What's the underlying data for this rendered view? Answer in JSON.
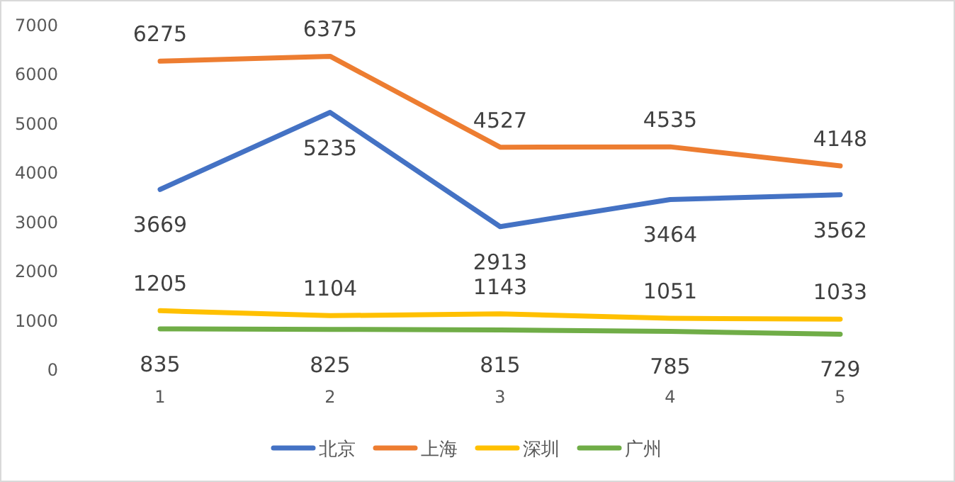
{
  "chart_data": {
    "type": "line",
    "categories": [
      "1",
      "2",
      "3",
      "4",
      "5"
    ],
    "series": [
      {
        "name": "北京",
        "color": "#4472c4",
        "values": [
          3669,
          5235,
          2913,
          3464,
          3562
        ]
      },
      {
        "name": "上海",
        "color": "#ed7d31",
        "values": [
          6275,
          6375,
          4527,
          4535,
          4148
        ]
      },
      {
        "name": "深圳",
        "color": "#ffc000",
        "values": [
          1205,
          1104,
          1143,
          1051,
          1033
        ]
      },
      {
        "name": "广州",
        "color": "#70ad47",
        "values": [
          835,
          825,
          815,
          785,
          729
        ]
      }
    ],
    "ylim": [
      0,
      7000
    ],
    "yticks": [
      0,
      1000,
      2000,
      3000,
      4000,
      5000,
      6000,
      7000
    ],
    "data_labels": true,
    "legend": "bottom",
    "grid": false,
    "marker": "none",
    "line_style": "solid"
  }
}
